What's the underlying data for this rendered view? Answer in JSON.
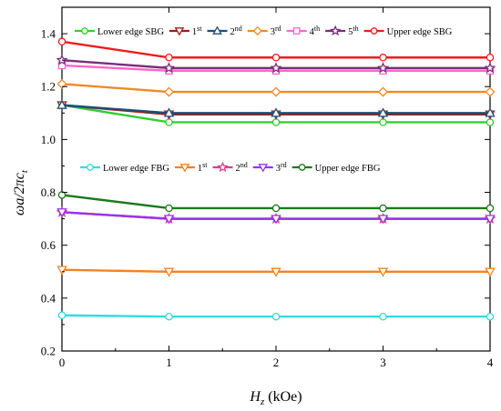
{
  "chart_data": {
    "type": "line",
    "xlabel": {
      "main": "H",
      "sub": "z",
      "unit": " (kOe)"
    },
    "ylabel": {
      "main": "ωa/2πc",
      "sub": "t"
    },
    "xlim": [
      0,
      4
    ],
    "ylim": [
      0.2,
      1.5
    ],
    "xticks": [
      0,
      1,
      2,
      3,
      4
    ],
    "yticks": [
      0.2,
      0.4,
      0.6,
      0.8,
      1.0,
      1.2,
      1.4
    ],
    "xtick_labels": [
      "0",
      "1",
      "2",
      "3",
      "4"
    ],
    "ytick_labels": [
      "0.2",
      "0.4",
      "0.6",
      "0.8",
      "1.0",
      "1.2",
      "1.4"
    ],
    "x": [
      0,
      1,
      2,
      3,
      4
    ],
    "grid": false,
    "legends": [
      {
        "group": "SBG",
        "placement": "top",
        "entries": [
          {
            "series": 0,
            "base": "Lower edge SBG",
            "sup": ""
          },
          {
            "series": 1,
            "base": "1",
            "sup": "st"
          },
          {
            "series": 2,
            "base": "2",
            "sup": "nd"
          },
          {
            "series": 3,
            "base": "3",
            "sup": "rd"
          },
          {
            "series": 4,
            "base": "4",
            "sup": "th"
          },
          {
            "series": 5,
            "base": "5",
            "sup": "th"
          },
          {
            "series": 6,
            "base": "Upper edge SBG",
            "sup": ""
          }
        ]
      },
      {
        "group": "FBG",
        "placement": "middle",
        "entries": [
          {
            "series": 7,
            "base": "Lower edge FBG",
            "sup": ""
          },
          {
            "series": 8,
            "base": "1",
            "sup": "st"
          },
          {
            "series": 9,
            "base": "2",
            "sup": "nd"
          },
          {
            "series": 10,
            "base": "3",
            "sup": "rd"
          },
          {
            "series": 11,
            "base": "Upper edge FBG",
            "sup": ""
          }
        ]
      }
    ],
    "series": [
      {
        "name": "Lower edge SBG",
        "color": "#33cc33",
        "marker": "circle",
        "values": [
          1.13,
          1.065,
          1.065,
          1.065,
          1.065
        ]
      },
      {
        "name": "1st",
        "color": "#a01c1c",
        "marker": "triangle-down",
        "values": [
          1.13,
          1.095,
          1.095,
          1.095,
          1.095
        ]
      },
      {
        "name": "2nd",
        "color": "#1f4e79",
        "marker": "triangle-up",
        "values": [
          1.13,
          1.1,
          1.1,
          1.1,
          1.1
        ]
      },
      {
        "name": "3rd",
        "color": "#f08a24",
        "marker": "diamond",
        "values": [
          1.21,
          1.18,
          1.18,
          1.18,
          1.18
        ]
      },
      {
        "name": "4th",
        "color": "#ff66cc",
        "marker": "square",
        "values": [
          1.28,
          1.26,
          1.26,
          1.26,
          1.26
        ]
      },
      {
        "name": "5th",
        "color": "#7b2d7b",
        "marker": "star",
        "values": [
          1.3,
          1.27,
          1.27,
          1.27,
          1.27
        ]
      },
      {
        "name": "Upper edge SBG",
        "color": "#ee1c1c",
        "marker": "circle",
        "values": [
          1.37,
          1.31,
          1.31,
          1.31,
          1.31
        ]
      },
      {
        "name": "Lower edge FBG",
        "color": "#33dddd",
        "marker": "circle",
        "values": [
          0.335,
          0.33,
          0.33,
          0.33,
          0.33
        ]
      },
      {
        "name": "1st",
        "color": "#f58220",
        "marker": "triangle-down",
        "values": [
          0.507,
          0.5,
          0.5,
          0.5,
          0.5
        ]
      },
      {
        "name": "2nd",
        "color": "#e0408a",
        "marker": "star",
        "values": [
          0.725,
          0.7,
          0.7,
          0.7,
          0.7
        ]
      },
      {
        "name": "3rd",
        "color": "#9933ee",
        "marker": "triangle-down",
        "values": [
          0.725,
          0.7,
          0.7,
          0.7,
          0.7
        ]
      },
      {
        "name": "Upper edge FBG",
        "color": "#1a7a1a",
        "marker": "circle",
        "values": [
          0.79,
          0.74,
          0.74,
          0.74,
          0.74
        ]
      }
    ]
  }
}
